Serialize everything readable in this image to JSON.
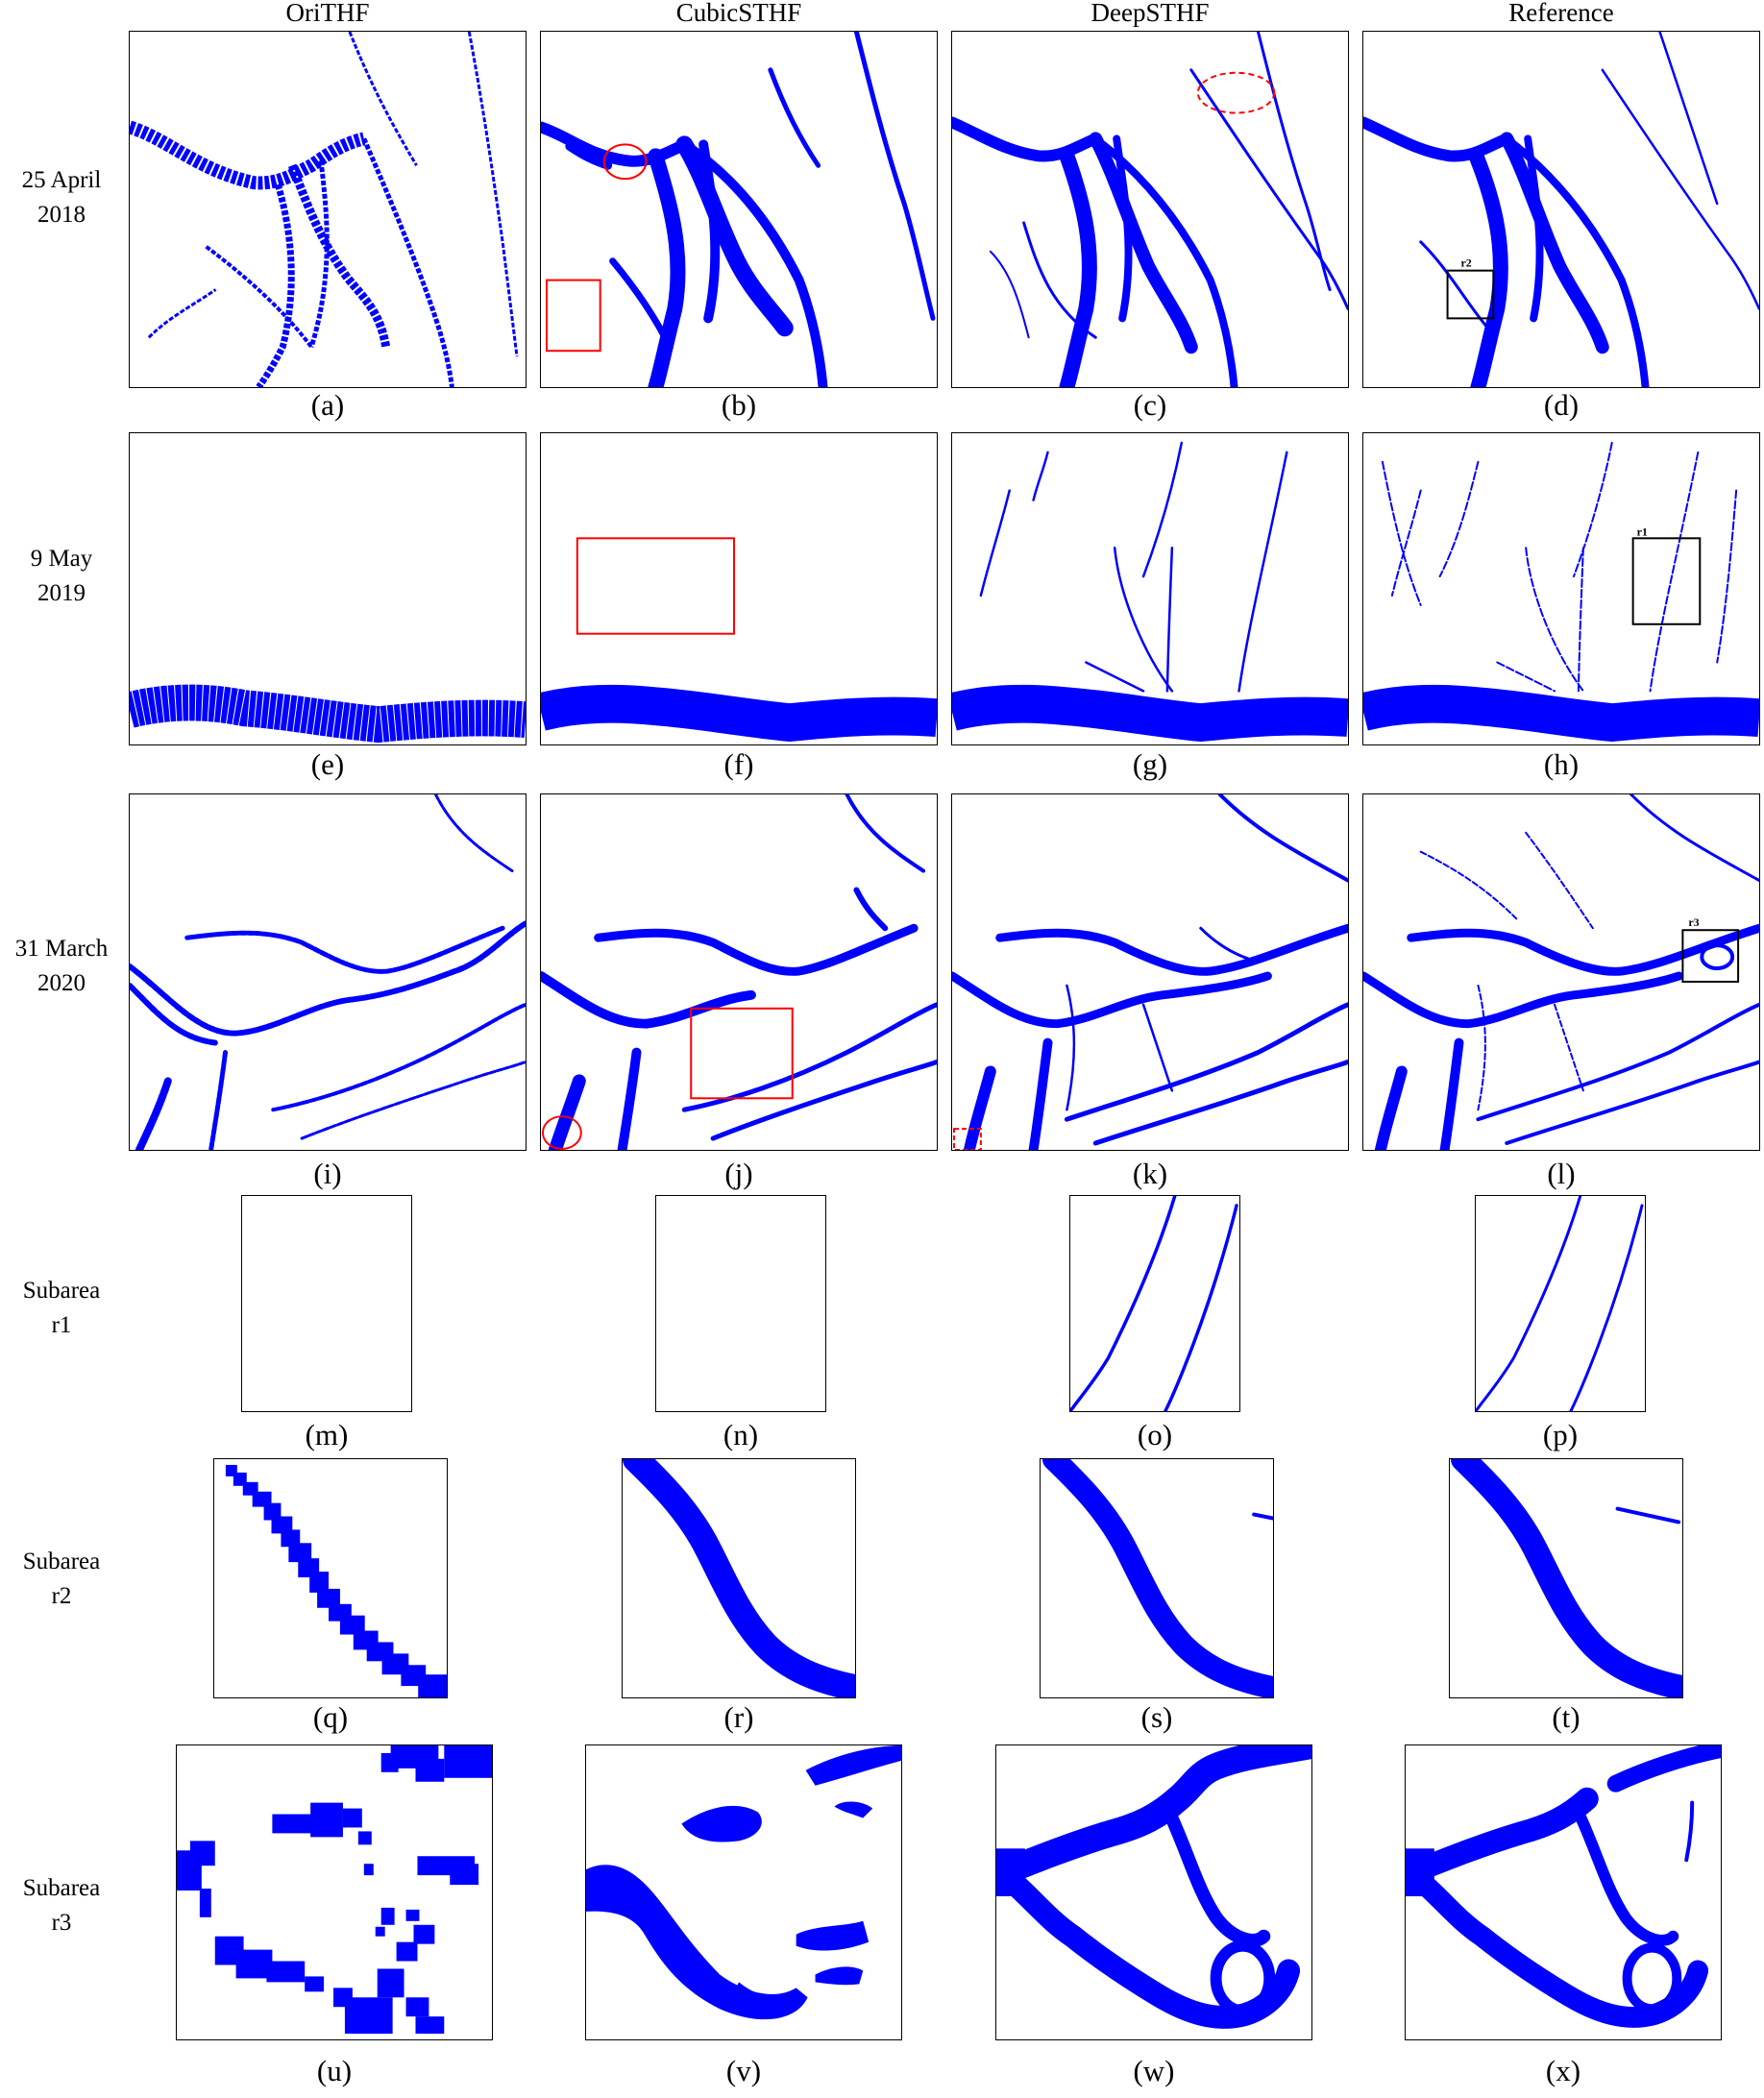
{
  "columns": [
    "OriTHF",
    "CubicSTHF",
    "DeepSTHF",
    "Reference"
  ],
  "rows": [
    {
      "label_line1": "25 April",
      "label_line2": "2018"
    },
    {
      "label_line1": "9 May",
      "label_line2": "2019"
    },
    {
      "label_line1": "31 March",
      "label_line2": "2020"
    },
    {
      "label_line1": "Subarea",
      "label_line2": "r1"
    },
    {
      "label_line1": "Subarea",
      "label_line2": "r2"
    },
    {
      "label_line1": "Subarea",
      "label_line2": "r3"
    }
  ],
  "captions": [
    "(a)",
    "(b)",
    "(c)",
    "(d)",
    "(e)",
    "(f)",
    "(g)",
    "(h)",
    "(i)",
    "(j)",
    "(k)",
    "(l)",
    "(m)",
    "(n)",
    "(o)",
    "(p)",
    "(q)",
    "(r)",
    "(s)",
    "(t)",
    "(u)",
    "(v)",
    "(w)",
    "(x)"
  ],
  "subarea_marks": {
    "r1": "r1",
    "r2": "r2",
    "r3": "r3"
  },
  "colors": {
    "water": "#0000ff",
    "highlight": "#ff0000",
    "box": "#000000"
  }
}
